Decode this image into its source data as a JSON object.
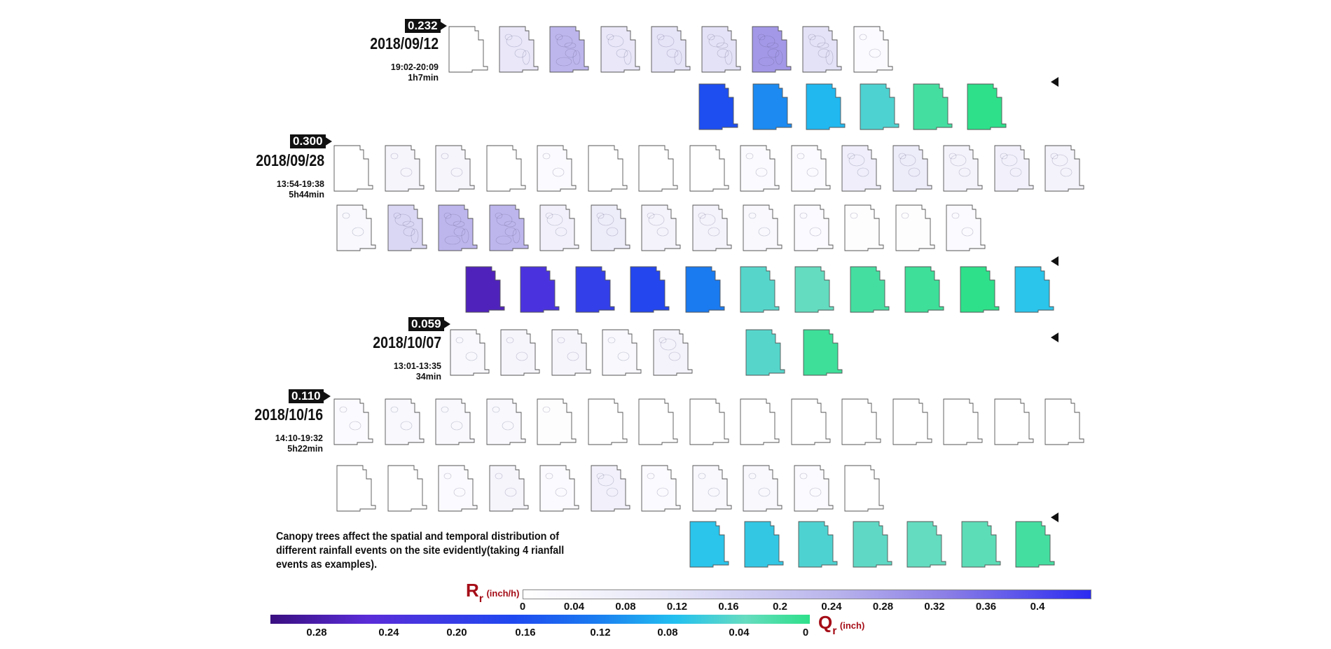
{
  "events": [
    {
      "peak": "0.232",
      "date": "2018/09/12",
      "time_range": "19:02-20:09",
      "duration": "1h7min"
    },
    {
      "peak": "0.300",
      "date": "2018/09/28",
      "time_range": "13:54-19:38",
      "duration": "5h44min"
    },
    {
      "peak": "0.059",
      "date": "2018/10/07",
      "time_range": "13:01-13:35",
      "duration": "34min"
    },
    {
      "peak": "0.110",
      "date": "2018/10/16",
      "time_range": "14:10-19:32",
      "duration": "5h22min"
    }
  ],
  "caption": "Canopy trees affect the spatial and temporal distribution of different rainfall events on the site evidently(taking 4 rianfall events as examples).",
  "rr_scale": {
    "symbol": "R",
    "subscript": "r",
    "unit": "(inch/h)",
    "ticks": [
      "0",
      "0.04",
      "0.08",
      "0.12",
      "0.16",
      "0.2",
      "0.24",
      "0.28",
      "0.32",
      "0.36",
      "0.4"
    ],
    "color_low": "#ffffff",
    "color_high": "#2b2bf0"
  },
  "qr_scale": {
    "symbol": "Q",
    "subscript": "r",
    "unit": "(inch)",
    "ticks": [
      "0.28",
      "0.24",
      "0.20",
      "0.16",
      "0.12",
      "0.08",
      "0.04",
      "0"
    ],
    "colors": [
      "#3a0f80",
      "#5a2cd8",
      "#1f48f0",
      "#1a7af0",
      "#22c0f0",
      "#66dcc0",
      "#2ee08a"
    ]
  },
  "rainfall_rows": [
    {
      "intensity": [
        0.0,
        0.1,
        0.2,
        0.1,
        0.11,
        0.12,
        0.25,
        0.12,
        0.02
      ]
    },
    {
      "intensity": [
        0.0,
        0.04,
        0.04,
        0.0,
        0.02,
        0.0,
        0.0,
        0.0,
        0.02,
        0.02,
        0.07,
        0.08,
        0.05,
        0.06,
        0.05
      ]
    },
    {
      "intensity": [
        0.03,
        0.14,
        0.2,
        0.2,
        0.06,
        0.08,
        0.05,
        0.05,
        0.03,
        0.02,
        0.01,
        0.01,
        0.02
      ]
    },
    {
      "intensity": [
        0.03,
        0.04,
        0.04,
        0.03,
        0.05
      ]
    },
    {
      "intensity": [
        0.02,
        0.03,
        0.03,
        0.03,
        0.01,
        0.0,
        0.0,
        0.0,
        0.0,
        0.0,
        0.0,
        0.0,
        0.0,
        0.0,
        0.0
      ]
    },
    {
      "intensity": [
        0.0,
        0.0,
        0.02,
        0.04,
        0.02,
        0.06,
        0.02,
        0.03,
        0.03,
        0.02,
        0.0
      ]
    }
  ],
  "runoff_rows": [
    {
      "depth": [
        0.16,
        0.11,
        0.08,
        0.05,
        0.015,
        0.0
      ]
    },
    {
      "depth": [
        0.26,
        0.22,
        0.19,
        0.17,
        0.12,
        0.045,
        0.035,
        0.015,
        0.01,
        0.0,
        0.07
      ]
    },
    {
      "depth": [
        0.045,
        0.01
      ]
    },
    {
      "depth": [
        0.07,
        0.065,
        0.05,
        0.04,
        0.035,
        0.03,
        0.015
      ]
    }
  ]
}
